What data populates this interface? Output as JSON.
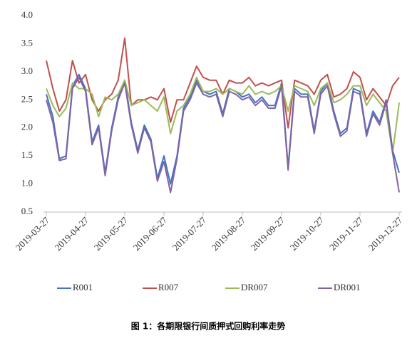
{
  "chart_data": {
    "type": "line",
    "caption": "图 1：各期限银行间质押式回购利率走势",
    "categories": [
      "2019-03-27",
      null,
      null,
      null,
      null,
      null,
      "2019-04-27",
      null,
      null,
      null,
      null,
      null,
      "2019-05-27",
      null,
      null,
      null,
      null,
      null,
      "2019-06-27",
      null,
      null,
      null,
      null,
      null,
      "2019-07-27",
      null,
      null,
      null,
      null,
      null,
      "2019-08-27",
      null,
      null,
      null,
      null,
      null,
      "2019-09-27",
      null,
      null,
      null,
      null,
      null,
      "2019-10-27",
      null,
      null,
      null,
      null,
      null,
      "2019-11-27",
      null,
      null,
      null,
      null,
      null,
      "2019-12-27"
    ],
    "series": [
      {
        "name": "R001",
        "color": "#4472c4",
        "values": [
          2.6,
          2.2,
          1.45,
          1.5,
          2.75,
          2.95,
          2.7,
          1.75,
          2.05,
          1.2,
          2.0,
          2.55,
          2.85,
          2.1,
          1.6,
          2.05,
          1.8,
          1.1,
          1.5,
          1.0,
          1.5,
          2.35,
          2.55,
          2.85,
          2.65,
          2.6,
          2.65,
          2.25,
          2.7,
          2.65,
          2.55,
          2.6,
          2.45,
          2.55,
          2.4,
          2.4,
          2.8,
          1.3,
          2.7,
          2.6,
          2.6,
          1.95,
          2.65,
          2.8,
          2.3,
          1.9,
          2.0,
          2.7,
          2.65,
          1.9,
          2.3,
          2.1,
          2.5,
          1.6,
          1.2
        ]
      },
      {
        "name": "R007",
        "color": "#c0504d",
        "values": [
          3.2,
          2.7,
          2.3,
          2.5,
          3.2,
          2.8,
          2.95,
          2.5,
          2.3,
          2.5,
          2.6,
          2.85,
          3.6,
          2.4,
          2.5,
          2.5,
          2.55,
          2.5,
          2.7,
          2.1,
          2.5,
          2.5,
          2.8,
          3.1,
          2.9,
          2.85,
          2.85,
          2.6,
          2.85,
          2.8,
          2.8,
          2.9,
          2.75,
          2.8,
          2.75,
          2.8,
          2.85,
          2.0,
          2.85,
          2.8,
          2.75,
          2.6,
          2.85,
          2.95,
          2.55,
          2.6,
          2.7,
          3.0,
          2.9,
          2.5,
          2.7,
          2.55,
          2.4,
          2.75,
          2.9
        ]
      },
      {
        "name": "DR007",
        "color": "#9bbb59",
        "values": [
          2.7,
          2.4,
          2.2,
          2.35,
          2.8,
          2.7,
          2.7,
          2.6,
          2.2,
          2.55,
          2.5,
          2.6,
          2.85,
          2.4,
          2.45,
          2.5,
          2.4,
          2.3,
          2.55,
          1.9,
          2.3,
          2.4,
          2.6,
          2.9,
          2.65,
          2.65,
          2.7,
          2.6,
          2.7,
          2.65,
          2.6,
          2.75,
          2.6,
          2.65,
          2.6,
          2.65,
          2.75,
          2.3,
          2.75,
          2.7,
          2.65,
          2.4,
          2.7,
          2.8,
          2.45,
          2.5,
          2.6,
          2.75,
          2.75,
          2.4,
          2.6,
          2.45,
          2.3,
          1.55,
          2.45
        ]
      },
      {
        "name": "DR001",
        "color": "#8064a2",
        "values": [
          2.5,
          2.1,
          1.42,
          1.45,
          2.7,
          2.9,
          2.65,
          1.7,
          2.0,
          1.15,
          1.95,
          2.5,
          2.8,
          2.05,
          1.55,
          2.0,
          1.75,
          1.05,
          1.4,
          0.85,
          1.45,
          2.3,
          2.5,
          2.8,
          2.6,
          2.55,
          2.6,
          2.2,
          2.65,
          2.6,
          2.5,
          2.55,
          2.4,
          2.5,
          2.35,
          2.35,
          2.75,
          1.25,
          2.65,
          2.55,
          2.55,
          1.9,
          2.6,
          2.75,
          2.25,
          1.85,
          1.95,
          2.65,
          2.6,
          1.85,
          2.25,
          2.05,
          2.45,
          1.55,
          0.85
        ]
      }
    ],
    "ylim": [
      0.5,
      4.0
    ],
    "yticks": [
      {
        "value": 0.5,
        "label": "0.5"
      },
      {
        "value": 1.0,
        "label": "1.0"
      },
      {
        "value": 1.5,
        "label": "1.5"
      },
      {
        "value": 2.0,
        "label": "2.0"
      },
      {
        "value": 2.5,
        "label": "2.5"
      },
      {
        "value": 3.0,
        "label": "3.0"
      },
      {
        "value": 3.5,
        "label": "3.5"
      },
      {
        "value": 4.0,
        "label": "4.0"
      }
    ],
    "grid": false,
    "legend": "bottom"
  }
}
